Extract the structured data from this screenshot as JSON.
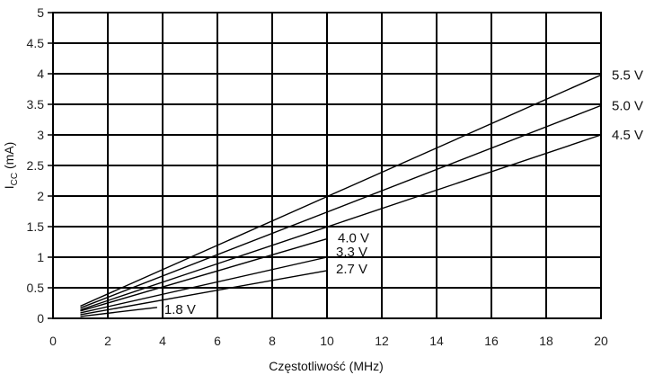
{
  "chart_data": {
    "type": "line",
    "xlabel": "Częstotliwość (MHz)",
    "ylabel_main": "I",
    "ylabel_sub": "CC",
    "ylabel_unit": " (mA)",
    "xlim": [
      0,
      20
    ],
    "ylim": [
      0,
      5
    ],
    "x_ticks": [
      "0",
      "2",
      "4",
      "6",
      "8",
      "10",
      "12",
      "14",
      "16",
      "18",
      "20"
    ],
    "y_ticks": [
      "0",
      "0.5",
      "1",
      "1.5",
      "2",
      "2.5",
      "3",
      "3.5",
      "4",
      "4.5",
      "5"
    ],
    "grid": true,
    "series": [
      {
        "name": "5.5 V",
        "x": [
          1,
          20
        ],
        "y": [
          0.2,
          3.98
        ]
      },
      {
        "name": "5.0 V",
        "x": [
          1,
          20
        ],
        "y": [
          0.17,
          3.48
        ]
      },
      {
        "name": "4.5 V",
        "x": [
          1,
          20
        ],
        "y": [
          0.14,
          3.0
        ]
      },
      {
        "name": "4.0 V",
        "x": [
          1,
          10
        ],
        "y": [
          0.12,
          1.3
        ]
      },
      {
        "name": "3.3 V",
        "x": [
          1,
          10
        ],
        "y": [
          0.09,
          1.0
        ]
      },
      {
        "name": "2.7 V",
        "x": [
          1,
          10
        ],
        "y": [
          0.06,
          0.78
        ]
      },
      {
        "name": "1.8 V",
        "x": [
          1,
          3.8
        ],
        "y": [
          0.03,
          0.18
        ]
      }
    ]
  }
}
